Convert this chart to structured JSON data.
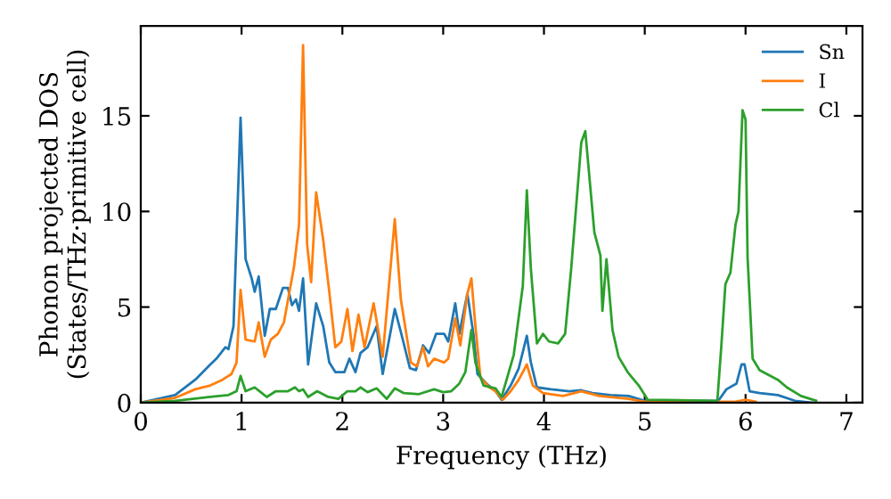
{
  "chart_data": {
    "type": "line",
    "xlabel": "Frequency (THz)",
    "ylabel": "Phonon projected DOS\n(States/THz·primitive cell)",
    "xlim": [
      0,
      7.16
    ],
    "ylim": [
      0,
      19.7
    ],
    "xticks": [
      0,
      1,
      2,
      3,
      4,
      5,
      6,
      7
    ],
    "yticks": [
      0,
      5,
      10,
      15
    ],
    "grid": false,
    "legend": "top right",
    "marker": "none",
    "line_style": "solid",
    "series": [
      {
        "name": "Sn",
        "color": "#1f77b4",
        "x": [
          0,
          0.34,
          0.54,
          0.69,
          0.75,
          0.84,
          0.87,
          0.92,
          0.99,
          1.04,
          1.1,
          1.13,
          1.17,
          1.23,
          1.28,
          1.34,
          1.41,
          1.46,
          1.5,
          1.54,
          1.57,
          1.61,
          1.66,
          1.74,
          1.81,
          1.87,
          1.93,
          2.02,
          2.07,
          2.13,
          2.18,
          2.25,
          2.34,
          2.4,
          2.52,
          2.58,
          2.67,
          2.73,
          2.8,
          2.86,
          2.93,
          3.01,
          3.05,
          3.12,
          3.16,
          3.24,
          3.3,
          3.34,
          3.43,
          3.52,
          3.58,
          3.67,
          3.75,
          3.83,
          3.87,
          3.93,
          4.07,
          4.25,
          4.37,
          4.48,
          4.66,
          4.84,
          5.0,
          5.73,
          5.81,
          5.91,
          5.96,
          5.99,
          6.04,
          6.14,
          6.32,
          6.49,
          6.66
        ],
        "values": [
          0,
          0.4,
          1.2,
          2.0,
          2.3,
          2.9,
          2.8,
          4.0,
          14.9,
          7.5,
          6.5,
          5.8,
          6.6,
          3.5,
          4.9,
          4.9,
          6.0,
          6.0,
          5.1,
          5.4,
          4.8,
          6.5,
          2.0,
          5.2,
          4.0,
          2.1,
          1.6,
          1.6,
          2.3,
          1.6,
          2.6,
          2.9,
          4.0,
          1.5,
          4.9,
          3.7,
          1.8,
          1.7,
          3.0,
          2.6,
          3.6,
          3.6,
          3.2,
          5.2,
          3.6,
          5.7,
          3.6,
          1.5,
          1.0,
          0.6,
          0.15,
          0.9,
          1.8,
          3.5,
          2.1,
          0.8,
          0.7,
          0.6,
          0.65,
          0.5,
          0.4,
          0.35,
          0.1,
          0.1,
          0.7,
          1.0,
          2.0,
          2.0,
          0.6,
          0.5,
          0.4,
          0.1,
          0
        ]
      },
      {
        "name": "I",
        "color": "#ff7f0e",
        "x": [
          0,
          0.34,
          0.54,
          0.69,
          0.81,
          0.9,
          0.95,
          0.99,
          1.04,
          1.13,
          1.17,
          1.23,
          1.29,
          1.36,
          1.42,
          1.52,
          1.57,
          1.61,
          1.65,
          1.69,
          1.74,
          1.81,
          1.87,
          1.93,
          1.99,
          2.05,
          2.1,
          2.16,
          2.22,
          2.31,
          2.4,
          2.52,
          2.58,
          2.68,
          2.74,
          2.8,
          2.85,
          2.91,
          3.01,
          3.05,
          3.12,
          3.17,
          3.24,
          3.28,
          3.32,
          3.37,
          3.46,
          3.52,
          3.59,
          3.67,
          3.75,
          3.83,
          3.89,
          3.99,
          4.19,
          4.37,
          4.55,
          4.84,
          5.0,
          5.9,
          6.0,
          6.1
        ],
        "values": [
          0,
          0.25,
          0.7,
          0.9,
          1.2,
          1.5,
          2.1,
          5.9,
          3.3,
          3.2,
          4.2,
          2.4,
          3.3,
          3.6,
          4.2,
          7.1,
          9.3,
          18.7,
          8.3,
          6.3,
          11.0,
          8.5,
          5.8,
          2.9,
          3.2,
          4.9,
          2.7,
          4.6,
          2.9,
          5.2,
          2.4,
          9.6,
          5.4,
          2.1,
          1.9,
          2.9,
          1.9,
          2.3,
          2.1,
          2.3,
          4.4,
          3.0,
          5.7,
          6.5,
          4.0,
          1.3,
          0.8,
          0.6,
          0.15,
          0.6,
          1.2,
          2.0,
          0.9,
          0.5,
          0.35,
          0.6,
          0.35,
          0.2,
          0.05,
          0.05,
          0.15,
          0.05
        ]
      },
      {
        "name": "Cl",
        "color": "#2ca02c",
        "x": [
          0,
          0.34,
          0.69,
          0.87,
          0.95,
          0.99,
          1.04,
          1.13,
          1.19,
          1.25,
          1.34,
          1.46,
          1.53,
          1.57,
          1.61,
          1.66,
          1.75,
          1.86,
          1.96,
          2.05,
          2.13,
          2.18,
          2.25,
          2.34,
          2.44,
          2.52,
          2.61,
          2.76,
          2.91,
          3.0,
          3.08,
          3.16,
          3.22,
          3.28,
          3.32,
          3.4,
          3.52,
          3.58,
          3.64,
          3.7,
          3.79,
          3.83,
          3.87,
          3.93,
          3.99,
          4.05,
          4.14,
          4.21,
          4.27,
          4.37,
          4.41,
          4.5,
          4.56,
          4.58,
          4.62,
          4.68,
          4.74,
          4.83,
          4.94,
          5.03,
          5.72,
          5.76,
          5.8,
          5.85,
          5.9,
          5.93,
          5.97,
          6.0,
          6.02,
          6.07,
          6.14,
          6.32,
          6.41,
          6.55,
          6.7
        ],
        "values": [
          0,
          0.1,
          0.3,
          0.4,
          0.6,
          1.4,
          0.6,
          0.8,
          0.55,
          0.3,
          0.6,
          0.6,
          0.8,
          0.6,
          0.7,
          0.3,
          0.6,
          0.3,
          0.2,
          0.6,
          0.6,
          0.8,
          0.55,
          0.75,
          0.2,
          0.75,
          0.5,
          0.45,
          0.7,
          0.55,
          0.6,
          1.0,
          1.6,
          3.8,
          2.1,
          0.9,
          0.75,
          0.3,
          1.4,
          2.5,
          6.1,
          11.1,
          7.0,
          3.1,
          3.6,
          3.2,
          3.1,
          3.6,
          7.0,
          13.6,
          14.2,
          8.9,
          7.7,
          4.8,
          7.5,
          3.8,
          2.4,
          1.6,
          0.9,
          0.15,
          0.1,
          3.0,
          6.2,
          6.8,
          9.3,
          10.0,
          15.3,
          14.8,
          7.6,
          2.3,
          1.7,
          1.2,
          0.8,
          0.35,
          0.1
        ]
      }
    ]
  }
}
